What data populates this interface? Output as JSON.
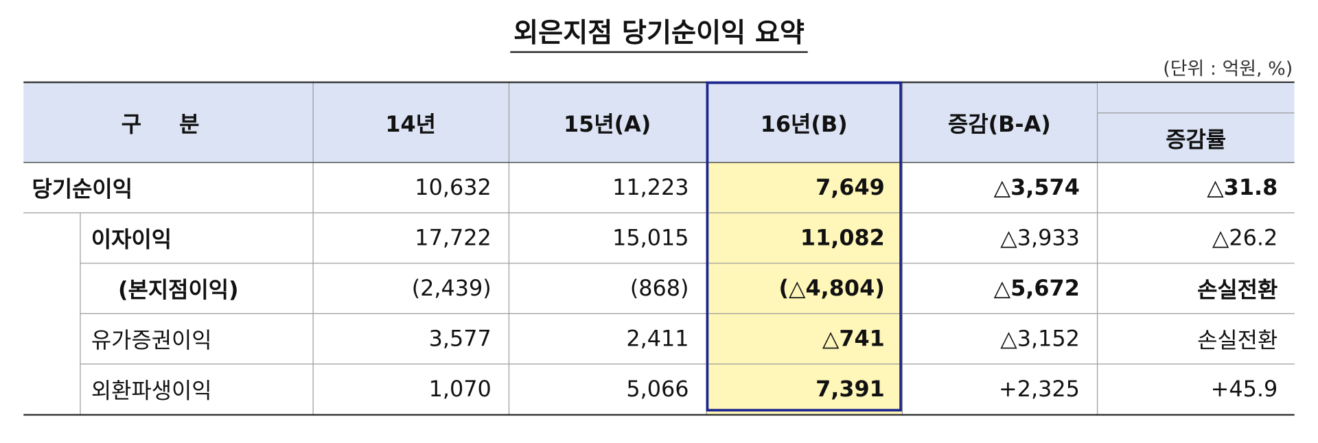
{
  "title": "외은지점 당기순이익 요약",
  "unit": "(단위 : 억원, %)",
  "table": {
    "header": [
      "구 분",
      "14년",
      "15년(A)",
      "16년(B)",
      "증감(B-A)",
      "증감률"
    ],
    "rows": [
      [
        "당기순이익",
        "10,632",
        "11,223",
        "7,649",
        "△3,574",
        "△31.8"
      ],
      [
        "이자이익",
        "17,722",
        "15,015",
        "11,082",
        "△3,933",
        "△26.2"
      ],
      [
        "(본지점이익)",
        "(2,439)",
        "(868)",
        "(△4,804)",
        "△5,672",
        "손실전환"
      ],
      [
        "유가증권이익",
        "3,577",
        "2,411",
        "△741",
        "△3,152",
        "손실전환"
      ],
      [
        "외환파생이익",
        "1,070",
        "5,066",
        "7,391",
        "+2,325",
        "+45.9"
      ]
    ]
  }
}
